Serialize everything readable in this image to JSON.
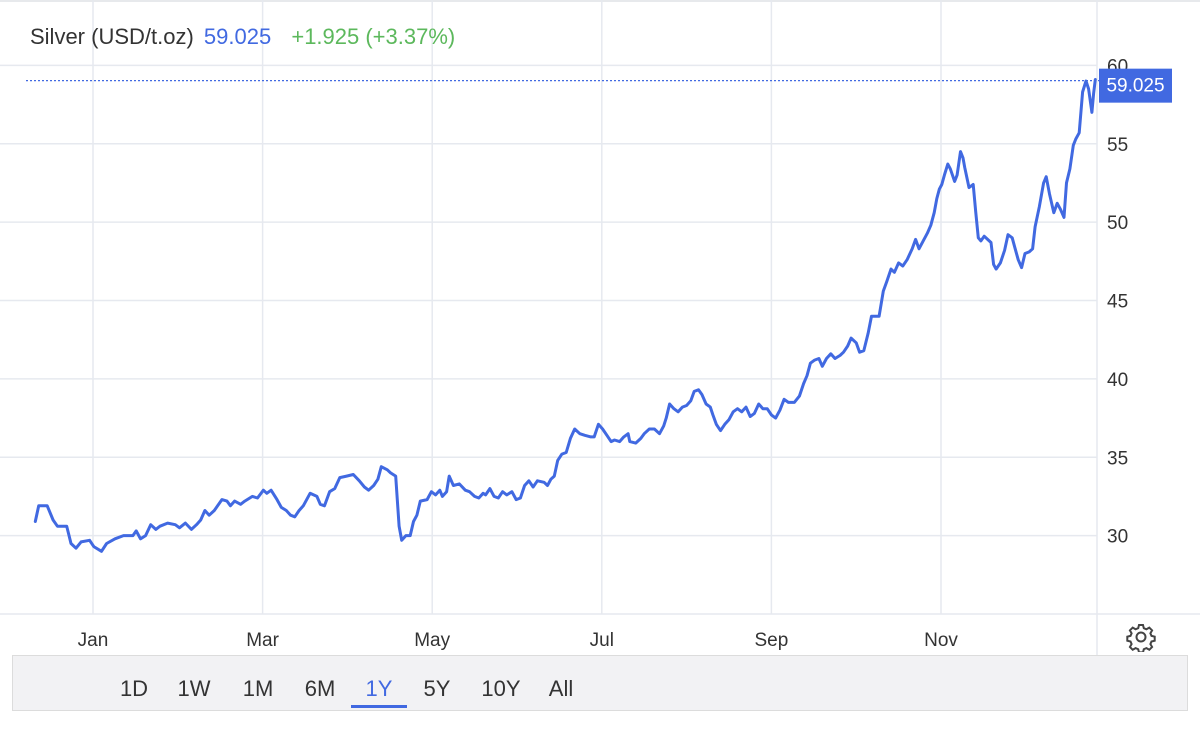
{
  "header": {
    "instrument": "Silver (USD/t.oz)",
    "price": "59.025",
    "change": "+1.925 (+3.37%)"
  },
  "price_tag": "59.025",
  "ranges": {
    "items": [
      "1D",
      "1W",
      "1M",
      "6M",
      "1Y",
      "5Y",
      "10Y",
      "All"
    ],
    "selected": "1Y"
  },
  "colors": {
    "line": "#4169e1",
    "grid": "#e6e9ef",
    "change_positive": "#5cb85c",
    "text": "#333333"
  },
  "icons": {
    "settings": "gear-icon"
  },
  "chart_data": {
    "type": "line",
    "title": "Silver (USD/t.oz)",
    "xlabel": "",
    "ylabel": "",
    "x_tick_labels": [
      "Jan",
      "Mar",
      "May",
      "Jul",
      "Sep",
      "Nov"
    ],
    "y_ticks": [
      30,
      35,
      40,
      45,
      50,
      55,
      60
    ],
    "ylim": [
      25,
      60
    ],
    "x_range_months": [
      0,
      11.6
    ],
    "grid": true,
    "last_value": 59.025,
    "series": [
      {
        "points": [
          [
            -0.68,
            30.9
          ],
          [
            -0.64,
            31.9
          ],
          [
            -0.54,
            31.9
          ],
          [
            -0.47,
            31.0
          ],
          [
            -0.42,
            30.6
          ],
          [
            -0.31,
            30.6
          ],
          [
            -0.26,
            29.5
          ],
          [
            -0.2,
            29.2
          ],
          [
            -0.14,
            29.6
          ],
          [
            -0.04,
            29.7
          ],
          [
            0.01,
            29.3
          ],
          [
            0.1,
            29.0
          ],
          [
            0.16,
            29.5
          ],
          [
            0.26,
            29.8
          ],
          [
            0.36,
            30.0
          ],
          [
            0.47,
            30.0
          ],
          [
            0.51,
            30.3
          ],
          [
            0.56,
            29.8
          ],
          [
            0.62,
            30.0
          ],
          [
            0.68,
            30.7
          ],
          [
            0.74,
            30.4
          ],
          [
            0.79,
            30.6
          ],
          [
            0.88,
            30.8
          ],
          [
            0.97,
            30.7
          ],
          [
            1.02,
            30.5
          ],
          [
            1.09,
            30.8
          ],
          [
            1.16,
            30.4
          ],
          [
            1.22,
            30.7
          ],
          [
            1.27,
            31.0
          ],
          [
            1.32,
            31.6
          ],
          [
            1.37,
            31.3
          ],
          [
            1.43,
            31.6
          ],
          [
            1.52,
            32.3
          ],
          [
            1.58,
            32.2
          ],
          [
            1.62,
            31.9
          ],
          [
            1.67,
            32.2
          ],
          [
            1.74,
            32.0
          ],
          [
            1.79,
            32.2
          ],
          [
            1.88,
            32.5
          ],
          [
            1.94,
            32.4
          ],
          [
            2.01,
            32.9
          ],
          [
            2.05,
            32.7
          ],
          [
            2.1,
            32.9
          ],
          [
            2.17,
            32.3
          ],
          [
            2.22,
            31.8
          ],
          [
            2.28,
            31.6
          ],
          [
            2.33,
            31.3
          ],
          [
            2.38,
            31.2
          ],
          [
            2.43,
            31.6
          ],
          [
            2.48,
            31.9
          ],
          [
            2.56,
            32.7
          ],
          [
            2.64,
            32.5
          ],
          [
            2.68,
            32.0
          ],
          [
            2.73,
            31.9
          ],
          [
            2.79,
            32.8
          ],
          [
            2.85,
            33.0
          ],
          [
            2.91,
            33.7
          ],
          [
            2.99,
            33.8
          ],
          [
            3.07,
            33.9
          ],
          [
            3.14,
            33.5
          ],
          [
            3.2,
            33.1
          ],
          [
            3.25,
            32.9
          ],
          [
            3.31,
            33.2
          ],
          [
            3.36,
            33.6
          ],
          [
            3.4,
            34.4
          ],
          [
            3.47,
            34.2
          ],
          [
            3.51,
            34.0
          ],
          [
            3.57,
            33.8
          ],
          [
            3.61,
            30.6
          ],
          [
            3.64,
            29.7
          ],
          [
            3.69,
            30.0
          ],
          [
            3.74,
            30.0
          ],
          [
            3.78,
            30.9
          ],
          [
            3.82,
            31.3
          ],
          [
            3.86,
            32.2
          ],
          [
            3.94,
            32.3
          ],
          [
            3.99,
            32.8
          ],
          [
            4.04,
            32.6
          ],
          [
            4.09,
            32.9
          ],
          [
            4.12,
            32.5
          ],
          [
            4.17,
            32.8
          ],
          [
            4.2,
            33.8
          ],
          [
            4.25,
            33.2
          ],
          [
            4.32,
            33.3
          ],
          [
            4.39,
            32.9
          ],
          [
            4.44,
            32.8
          ],
          [
            4.5,
            32.5
          ],
          [
            4.55,
            32.4
          ],
          [
            4.6,
            32.7
          ],
          [
            4.63,
            32.6
          ],
          [
            4.68,
            33.0
          ],
          [
            4.73,
            32.5
          ],
          [
            4.78,
            32.4
          ],
          [
            4.83,
            32.8
          ],
          [
            4.88,
            32.6
          ],
          [
            4.94,
            32.8
          ],
          [
            4.99,
            32.3
          ],
          [
            5.04,
            32.4
          ],
          [
            5.09,
            33.2
          ],
          [
            5.14,
            33.5
          ],
          [
            5.19,
            33.1
          ],
          [
            5.24,
            33.5
          ],
          [
            5.32,
            33.4
          ],
          [
            5.36,
            33.2
          ],
          [
            5.4,
            33.6
          ],
          [
            5.44,
            33.8
          ],
          [
            5.48,
            34.8
          ],
          [
            5.53,
            35.2
          ],
          [
            5.58,
            35.3
          ],
          [
            5.63,
            36.2
          ],
          [
            5.68,
            36.8
          ],
          [
            5.74,
            36.5
          ],
          [
            5.8,
            36.4
          ],
          [
            5.87,
            36.3
          ],
          [
            5.91,
            36.3
          ],
          [
            5.96,
            37.1
          ],
          [
            6.01,
            36.8
          ],
          [
            6.06,
            36.4
          ],
          [
            6.11,
            36.0
          ],
          [
            6.15,
            36.1
          ],
          [
            6.21,
            36.0
          ],
          [
            6.26,
            36.3
          ],
          [
            6.31,
            36.5
          ],
          [
            6.33,
            36.0
          ],
          [
            6.4,
            35.9
          ],
          [
            6.46,
            36.2
          ],
          [
            6.5,
            36.5
          ],
          [
            6.56,
            36.8
          ],
          [
            6.62,
            36.8
          ],
          [
            6.68,
            36.5
          ],
          [
            6.73,
            37.0
          ],
          [
            6.76,
            37.5
          ],
          [
            6.8,
            38.4
          ],
          [
            6.85,
            38.1
          ],
          [
            6.9,
            37.9
          ],
          [
            6.95,
            38.2
          ],
          [
            7.0,
            38.3
          ],
          [
            7.05,
            38.6
          ],
          [
            7.09,
            39.2
          ],
          [
            7.14,
            39.3
          ],
          [
            7.18,
            39.0
          ],
          [
            7.23,
            38.4
          ],
          [
            7.28,
            38.2
          ],
          [
            7.31,
            37.7
          ],
          [
            7.35,
            37.1
          ],
          [
            7.4,
            36.7
          ],
          [
            7.45,
            37.1
          ],
          [
            7.5,
            37.4
          ],
          [
            7.55,
            37.9
          ],
          [
            7.6,
            38.1
          ],
          [
            7.65,
            37.9
          ],
          [
            7.7,
            38.2
          ],
          [
            7.75,
            37.6
          ],
          [
            7.8,
            37.8
          ],
          [
            7.85,
            38.4
          ],
          [
            7.9,
            38.1
          ],
          [
            7.95,
            38.1
          ],
          [
            8.0,
            37.7
          ],
          [
            8.05,
            37.5
          ],
          [
            8.1,
            38.0
          ],
          [
            8.15,
            38.7
          ],
          [
            8.2,
            38.5
          ],
          [
            8.27,
            38.5
          ],
          [
            8.33,
            38.9
          ],
          [
            8.38,
            39.7
          ],
          [
            8.42,
            40.2
          ],
          [
            8.46,
            41.0
          ],
          [
            8.51,
            41.2
          ],
          [
            8.56,
            41.3
          ],
          [
            8.6,
            40.8
          ],
          [
            8.65,
            41.3
          ],
          [
            8.7,
            41.6
          ],
          [
            8.75,
            41.3
          ],
          [
            8.81,
            41.5
          ],
          [
            8.85,
            41.7
          ],
          [
            8.9,
            42.1
          ],
          [
            8.94,
            42.6
          ],
          [
            9.0,
            42.3
          ],
          [
            9.04,
            41.7
          ],
          [
            9.09,
            41.8
          ],
          [
            9.14,
            42.9
          ],
          [
            9.18,
            44.0
          ],
          [
            9.23,
            44.0
          ],
          [
            9.27,
            44.0
          ],
          [
            9.32,
            45.6
          ],
          [
            9.36,
            46.2
          ],
          [
            9.41,
            47.0
          ],
          [
            9.45,
            46.8
          ],
          [
            9.5,
            47.4
          ],
          [
            9.55,
            47.2
          ],
          [
            9.6,
            47.6
          ],
          [
            9.66,
            48.3
          ],
          [
            9.7,
            48.9
          ],
          [
            9.74,
            48.3
          ],
          [
            9.79,
            48.8
          ],
          [
            9.84,
            49.3
          ],
          [
            9.88,
            49.8
          ],
          [
            9.92,
            50.6
          ],
          [
            9.95,
            51.5
          ],
          [
            9.98,
            52.1
          ],
          [
            10.01,
            52.4
          ],
          [
            10.04,
            53.0
          ],
          [
            10.08,
            53.7
          ],
          [
            10.11,
            53.4
          ],
          [
            10.16,
            52.6
          ],
          [
            10.19,
            53.0
          ],
          [
            10.23,
            54.5
          ],
          [
            10.26,
            54.1
          ],
          [
            10.28,
            53.5
          ],
          [
            10.33,
            52.2
          ],
          [
            10.38,
            52.4
          ],
          [
            10.41,
            50.6
          ],
          [
            10.44,
            49.0
          ],
          [
            10.47,
            48.8
          ],
          [
            10.51,
            49.1
          ],
          [
            10.55,
            48.9
          ],
          [
            10.59,
            48.7
          ],
          [
            10.62,
            47.3
          ],
          [
            10.65,
            47.0
          ],
          [
            10.7,
            47.4
          ],
          [
            10.75,
            48.2
          ],
          [
            10.79,
            49.2
          ],
          [
            10.84,
            49.0
          ],
          [
            10.88,
            48.2
          ],
          [
            10.91,
            47.6
          ],
          [
            10.95,
            47.1
          ],
          [
            10.99,
            48.0
          ],
          [
            11.04,
            48.1
          ],
          [
            11.08,
            48.3
          ],
          [
            11.11,
            49.7
          ],
          [
            11.16,
            51.0
          ],
          [
            11.21,
            52.5
          ],
          [
            11.24,
            52.9
          ],
          [
            11.28,
            51.8
          ],
          [
            11.33,
            50.6
          ],
          [
            11.37,
            51.2
          ],
          [
            11.41,
            50.8
          ],
          [
            11.45,
            50.3
          ],
          [
            11.48,
            52.5
          ],
          [
            11.52,
            53.4
          ],
          [
            11.56,
            54.9
          ],
          [
            11.59,
            55.3
          ],
          [
            11.63,
            55.7
          ],
          [
            11.67,
            58.3
          ],
          [
            11.71,
            59.0
          ],
          [
            11.74,
            58.5
          ],
          [
            11.78,
            57.0
          ],
          [
            11.8,
            58.2
          ],
          [
            11.82,
            59.1
          ]
        ]
      }
    ]
  }
}
